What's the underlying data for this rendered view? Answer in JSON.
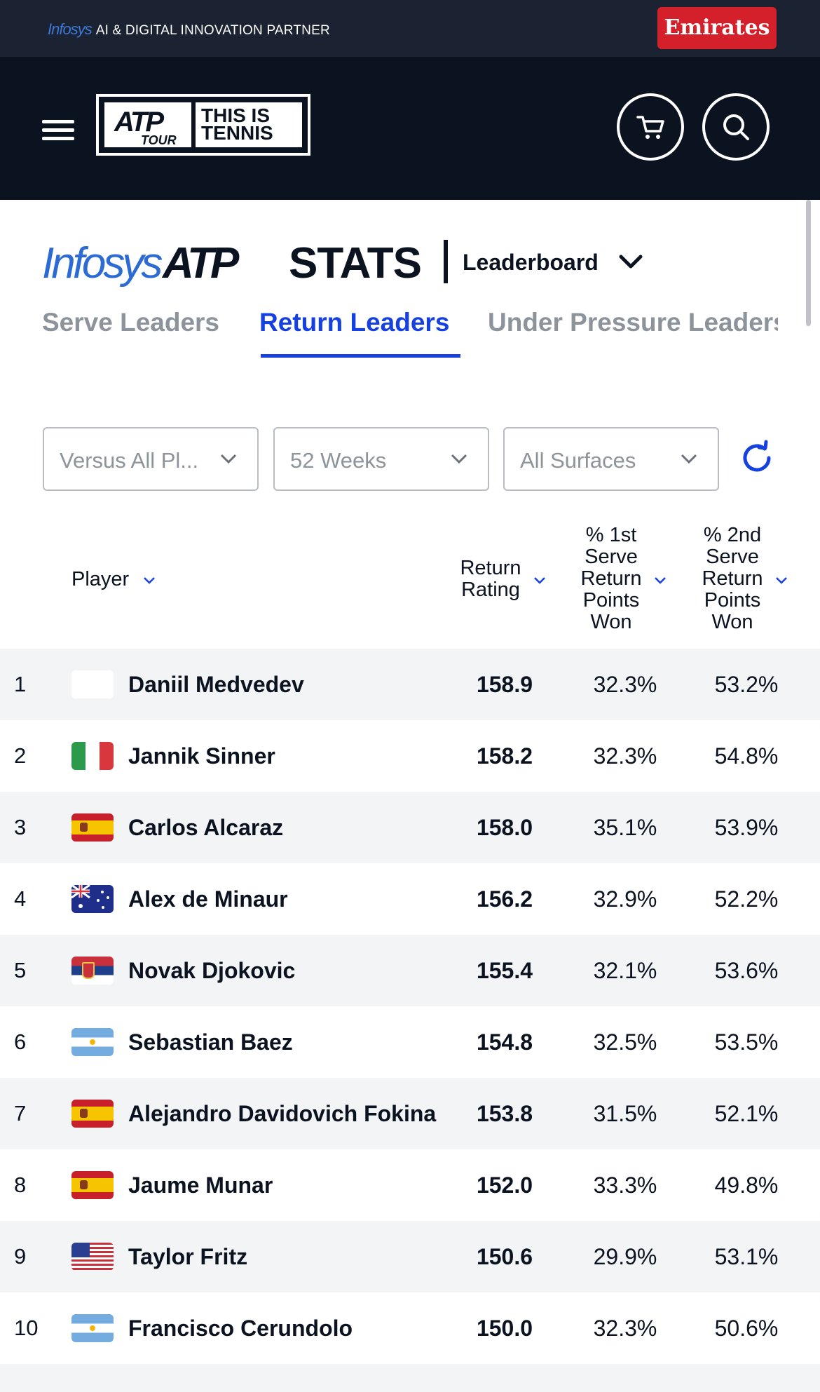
{
  "topbar": {
    "sponsor_brand": "Infosys",
    "sponsor_text": "AI & DIGITAL INNOVATION PARTNER",
    "partner_button": "Emirates"
  },
  "header": {
    "logo_atp": "ATP",
    "logo_tour": "TOUR",
    "logo_tagline_1": "THIS IS",
    "logo_tagline_2": "TENNIS",
    "menu_icon": "hamburger-menu-icon",
    "cart_icon": "cart-icon",
    "search_icon": "search-icon"
  },
  "brand": {
    "infosys": "Infosys",
    "atp": "ATP",
    "stats": "STATS",
    "selector": "Leaderboard"
  },
  "tabs": [
    {
      "label": "Serve Leaders",
      "active": false
    },
    {
      "label": "Return Leaders",
      "active": true
    },
    {
      "label": "Under Pressure Leaders",
      "active": false
    }
  ],
  "filters": {
    "opponent": "Versus All Pl...",
    "period": "52 Weeks",
    "surface": "All Surfaces"
  },
  "table": {
    "columns": {
      "player": "Player",
      "rating": [
        "Return",
        "Rating"
      ],
      "first": [
        "% 1st",
        "Serve",
        "Return",
        "Points",
        "Won"
      ],
      "second": [
        "% 2nd",
        "Serve",
        "Return",
        "Points",
        "Won"
      ]
    },
    "rows": [
      {
        "rank": "1",
        "country": "none",
        "name": "Daniil Medvedev",
        "rating": "158.9",
        "first": "32.3%",
        "second": "53.2%"
      },
      {
        "rank": "2",
        "country": "ITA",
        "name": "Jannik Sinner",
        "rating": "158.2",
        "first": "32.3%",
        "second": "54.8%"
      },
      {
        "rank": "3",
        "country": "ESP",
        "name": "Carlos Alcaraz",
        "rating": "158.0",
        "first": "35.1%",
        "second": "53.9%"
      },
      {
        "rank": "4",
        "country": "AUS",
        "name": "Alex de Minaur",
        "rating": "156.2",
        "first": "32.9%",
        "second": "52.2%"
      },
      {
        "rank": "5",
        "country": "SRB",
        "name": "Novak Djokovic",
        "rating": "155.4",
        "first": "32.1%",
        "second": "53.6%"
      },
      {
        "rank": "6",
        "country": "ARG",
        "name": "Sebastian Baez",
        "rating": "154.8",
        "first": "32.5%",
        "second": "53.5%"
      },
      {
        "rank": "7",
        "country": "ESP",
        "name": "Alejandro Davidovich Fokina",
        "rating": "153.8",
        "first": "31.5%",
        "second": "52.1%"
      },
      {
        "rank": "8",
        "country": "ESP",
        "name": "Jaume Munar",
        "rating": "152.0",
        "first": "33.3%",
        "second": "49.8%"
      },
      {
        "rank": "9",
        "country": "USA",
        "name": "Taylor Fritz",
        "rating": "150.6",
        "first": "29.9%",
        "second": "53.1%"
      },
      {
        "rank": "10",
        "country": "ARG",
        "name": "Francisco Cerundolo",
        "rating": "150.0",
        "first": "32.3%",
        "second": "50.6%"
      }
    ]
  },
  "colors": {
    "accent": "#1641e0",
    "header_bg": "#0b1220",
    "emirates_red": "#d4202a"
  }
}
